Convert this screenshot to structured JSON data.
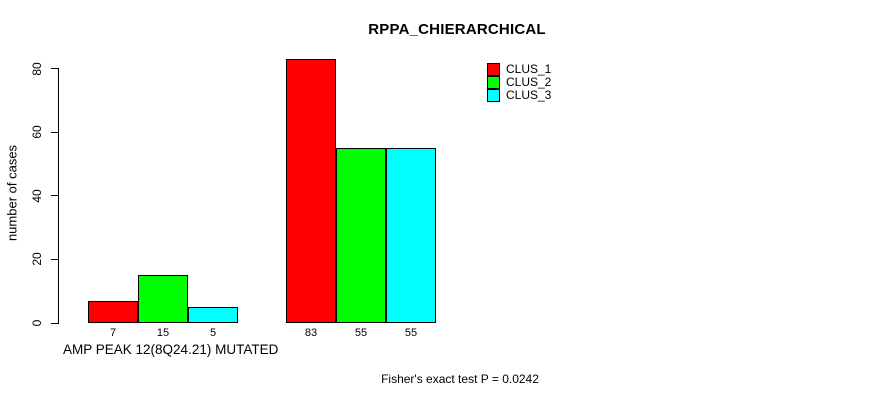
{
  "chart_data": {
    "type": "bar",
    "title": "RPPA_CHIERARCHICAL",
    "ylabel": "number of cases",
    "xlabel": "",
    "yticks": [
      0,
      20,
      40,
      60,
      80
    ],
    "ylim": [
      0,
      83
    ],
    "grid": false,
    "legend_position": "top-right",
    "series": [
      {
        "name": "CLUS_1",
        "color": "#ff0000"
      },
      {
        "name": "CLUS_2",
        "color": "#00ff00"
      },
      {
        "name": "CLUS_3",
        "color": "#00ffff"
      }
    ],
    "groups": [
      {
        "label": "AMP PEAK 12(8Q24.21) MUTATED",
        "values": [
          7,
          15,
          5
        ]
      },
      {
        "label": "",
        "values": [
          83,
          55,
          55
        ]
      }
    ],
    "bar_value_labels": [
      7,
      15,
      5,
      83,
      55,
      55
    ],
    "footer": "Fisher's exact test P = 0.0242",
    "axis_color": "#000000",
    "background_color": "#ffffff"
  }
}
